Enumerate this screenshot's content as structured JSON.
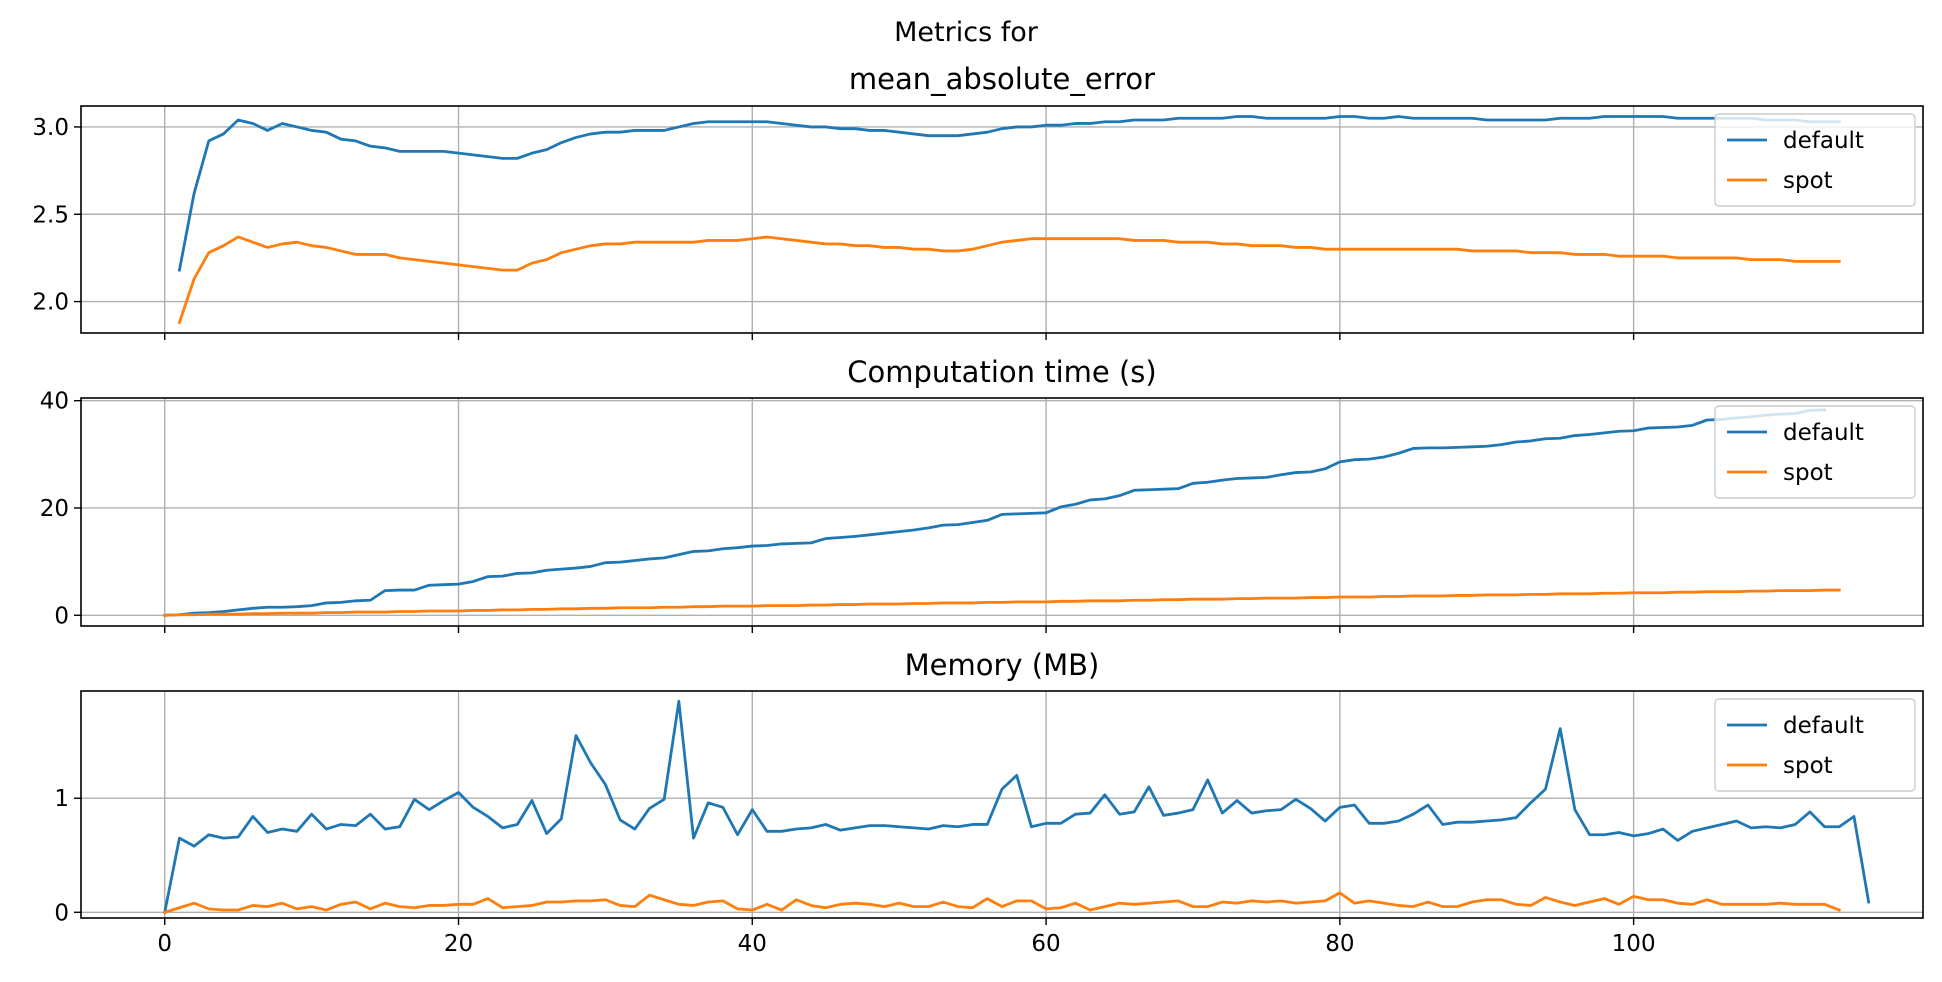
{
  "figure": {
    "suptitle": "Metrics for"
  },
  "colors": {
    "default": "#1f77b4",
    "spot": "#ff7f0e",
    "grid": "#b0b0b0",
    "axes": "#000000"
  },
  "chart_data": [
    {
      "type": "line",
      "title": "mean_absolute_error",
      "xlabel": "",
      "ylabel": "",
      "xlim": [
        -5.7,
        119.7
      ],
      "ylim": [
        1.82,
        3.12
      ],
      "xticks": [
        0,
        20,
        40,
        60,
        80,
        100
      ],
      "yticks": [
        2.0,
        2.5,
        3.0
      ],
      "ytick_labels": [
        "2.0",
        "2.5",
        "3.0"
      ],
      "show_xtick_labels": false,
      "grid": true,
      "legend_position": "upper right",
      "x_start": 1,
      "series": [
        {
          "name": "default",
          "color": "#1f77b4",
          "values": [
            2.18,
            2.62,
            2.92,
            2.96,
            3.04,
            3.02,
            2.98,
            3.02,
            3.0,
            2.98,
            2.97,
            2.93,
            2.92,
            2.89,
            2.88,
            2.86,
            2.86,
            2.86,
            2.86,
            2.85,
            2.84,
            2.83,
            2.82,
            2.82,
            2.85,
            2.87,
            2.91,
            2.94,
            2.96,
            2.97,
            2.97,
            2.98,
            2.98,
            2.98,
            3.0,
            3.02,
            3.03,
            3.03,
            3.03,
            3.03,
            3.03,
            3.02,
            3.01,
            3.0,
            3.0,
            2.99,
            2.99,
            2.98,
            2.98,
            2.97,
            2.96,
            2.95,
            2.95,
            2.95,
            2.96,
            2.97,
            2.99,
            3.0,
            3.0,
            3.01,
            3.01,
            3.02,
            3.02,
            3.03,
            3.03,
            3.04,
            3.04,
            3.04,
            3.05,
            3.05,
            3.05,
            3.05,
            3.06,
            3.06,
            3.05,
            3.05,
            3.05,
            3.05,
            3.05,
            3.06,
            3.06,
            3.05,
            3.05,
            3.06,
            3.05,
            3.05,
            3.05,
            3.05,
            3.05,
            3.04,
            3.04,
            3.04,
            3.04,
            3.04,
            3.05,
            3.05,
            3.05,
            3.06,
            3.06,
            3.06,
            3.06,
            3.06,
            3.05,
            3.05,
            3.05,
            3.05,
            3.05,
            3.05,
            3.04,
            3.04,
            3.04,
            3.03,
            3.03,
            3.03
          ]
        },
        {
          "name": "spot",
          "color": "#ff7f0e",
          "values": [
            1.88,
            2.13,
            2.28,
            2.32,
            2.37,
            2.34,
            2.31,
            2.33,
            2.34,
            2.32,
            2.31,
            2.29,
            2.27,
            2.27,
            2.27,
            2.25,
            2.24,
            2.23,
            2.22,
            2.21,
            2.2,
            2.19,
            2.18,
            2.18,
            2.22,
            2.24,
            2.28,
            2.3,
            2.32,
            2.33,
            2.33,
            2.34,
            2.34,
            2.34,
            2.34,
            2.34,
            2.35,
            2.35,
            2.35,
            2.36,
            2.37,
            2.36,
            2.35,
            2.34,
            2.33,
            2.33,
            2.32,
            2.32,
            2.31,
            2.31,
            2.3,
            2.3,
            2.29,
            2.29,
            2.3,
            2.32,
            2.34,
            2.35,
            2.36,
            2.36,
            2.36,
            2.36,
            2.36,
            2.36,
            2.36,
            2.35,
            2.35,
            2.35,
            2.34,
            2.34,
            2.34,
            2.33,
            2.33,
            2.32,
            2.32,
            2.32,
            2.31,
            2.31,
            2.3,
            2.3,
            2.3,
            2.3,
            2.3,
            2.3,
            2.3,
            2.3,
            2.3,
            2.3,
            2.29,
            2.29,
            2.29,
            2.29,
            2.28,
            2.28,
            2.28,
            2.27,
            2.27,
            2.27,
            2.26,
            2.26,
            2.26,
            2.26,
            2.25,
            2.25,
            2.25,
            2.25,
            2.25,
            2.24,
            2.24,
            2.24,
            2.23,
            2.23,
            2.23,
            2.23
          ]
        }
      ]
    },
    {
      "type": "line",
      "title": "Computation time (s)",
      "xlabel": "",
      "ylabel": "",
      "xlim": [
        -5.7,
        119.7
      ],
      "ylim": [
        -2.0,
        40.5
      ],
      "xticks": [
        0,
        20,
        40,
        60,
        80,
        100
      ],
      "yticks": [
        0,
        20,
        40
      ],
      "ytick_labels": [
        "0",
        "20",
        "40"
      ],
      "show_xtick_labels": false,
      "grid": true,
      "legend_position": "upper right",
      "x_start": 0,
      "series": [
        {
          "name": "default",
          "color": "#1f77b4",
          "values": [
            0.0,
            0.1,
            0.4,
            0.5,
            0.7,
            1.0,
            1.3,
            1.5,
            1.5,
            1.6,
            1.8,
            2.3,
            2.4,
            2.7,
            2.8,
            4.6,
            4.7,
            4.7,
            5.6,
            5.7,
            5.8,
            6.3,
            7.2,
            7.3,
            7.8,
            7.9,
            8.4,
            8.6,
            8.8,
            9.1,
            9.8,
            9.9,
            10.2,
            10.5,
            10.7,
            11.3,
            11.9,
            12.0,
            12.4,
            12.6,
            12.9,
            13.0,
            13.3,
            13.4,
            13.5,
            14.3,
            14.5,
            14.7,
            15.0,
            15.3,
            15.6,
            15.9,
            16.3,
            16.8,
            16.9,
            17.3,
            17.7,
            18.8,
            18.9,
            19.0,
            19.1,
            20.2,
            20.7,
            21.5,
            21.7,
            22.3,
            23.3,
            23.4,
            23.5,
            23.6,
            24.6,
            24.8,
            25.2,
            25.5,
            25.6,
            25.7,
            26.2,
            26.6,
            26.7,
            27.3,
            28.6,
            29.0,
            29.1,
            29.5,
            30.2,
            31.1,
            31.2,
            31.2,
            31.3,
            31.4,
            31.5,
            31.8,
            32.3,
            32.5,
            32.9,
            33.0,
            33.5,
            33.7,
            34.0,
            34.3,
            34.4,
            34.9,
            35.0,
            35.1,
            35.4,
            36.4,
            36.5,
            36.8,
            37.0,
            37.3,
            37.5,
            37.6,
            38.2,
            38.3
          ]
        },
        {
          "name": "spot",
          "color": "#ff7f0e",
          "values": [
            0.0,
            0.1,
            0.1,
            0.2,
            0.2,
            0.2,
            0.3,
            0.3,
            0.4,
            0.4,
            0.4,
            0.5,
            0.5,
            0.6,
            0.6,
            0.6,
            0.7,
            0.7,
            0.8,
            0.8,
            0.8,
            0.9,
            0.9,
            1.0,
            1.0,
            1.1,
            1.1,
            1.2,
            1.2,
            1.3,
            1.3,
            1.4,
            1.4,
            1.4,
            1.5,
            1.5,
            1.6,
            1.6,
            1.7,
            1.7,
            1.7,
            1.8,
            1.8,
            1.8,
            1.9,
            1.9,
            2.0,
            2.0,
            2.1,
            2.1,
            2.1,
            2.2,
            2.2,
            2.3,
            2.3,
            2.3,
            2.4,
            2.4,
            2.5,
            2.5,
            2.5,
            2.6,
            2.6,
            2.7,
            2.7,
            2.7,
            2.8,
            2.8,
            2.9,
            2.9,
            3.0,
            3.0,
            3.0,
            3.1,
            3.1,
            3.2,
            3.2,
            3.2,
            3.3,
            3.3,
            3.4,
            3.4,
            3.4,
            3.5,
            3.5,
            3.6,
            3.6,
            3.6,
            3.7,
            3.7,
            3.8,
            3.8,
            3.8,
            3.9,
            3.9,
            4.0,
            4.0,
            4.0,
            4.1,
            4.1,
            4.2,
            4.2,
            4.2,
            4.3,
            4.3,
            4.4,
            4.4,
            4.4,
            4.5,
            4.5,
            4.6,
            4.6,
            4.6,
            4.7,
            4.7
          ]
        }
      ]
    },
    {
      "type": "line",
      "title": "Memory (MB)",
      "xlabel": "",
      "ylabel": "",
      "xlim": [
        -5.7,
        119.7
      ],
      "ylim": [
        -0.05,
        1.94
      ],
      "xticks": [
        0,
        20,
        40,
        60,
        80,
        100
      ],
      "yticks": [
        0,
        1
      ],
      "ytick_labels": [
        "0",
        "1"
      ],
      "show_xtick_labels": true,
      "grid": true,
      "legend_position": "upper right",
      "x_start": 0,
      "series": [
        {
          "name": "default",
          "color": "#1f77b4",
          "values": [
            0.0,
            0.65,
            0.58,
            0.68,
            0.65,
            0.66,
            0.84,
            0.7,
            0.73,
            0.71,
            0.86,
            0.73,
            0.77,
            0.76,
            0.86,
            0.73,
            0.75,
            0.99,
            0.9,
            0.98,
            1.05,
            0.92,
            0.84,
            0.74,
            0.77,
            0.98,
            0.69,
            0.82,
            1.55,
            1.31,
            1.12,
            0.81,
            0.73,
            0.91,
            0.99,
            1.85,
            0.65,
            0.96,
            0.92,
            0.68,
            0.9,
            0.71,
            0.71,
            0.73,
            0.74,
            0.77,
            0.72,
            0.74,
            0.76,
            0.76,
            0.75,
            0.74,
            0.73,
            0.76,
            0.75,
            0.77,
            0.77,
            1.08,
            1.2,
            0.75,
            0.78,
            0.78,
            0.86,
            0.87,
            1.03,
            0.86,
            0.88,
            1.1,
            0.85,
            0.87,
            0.9,
            1.16,
            0.87,
            0.98,
            0.87,
            0.89,
            0.9,
            0.99,
            0.91,
            0.8,
            0.92,
            0.94,
            0.78,
            0.78,
            0.8,
            0.86,
            0.94,
            0.77,
            0.79,
            0.79,
            0.8,
            0.81,
            0.83,
            0.96,
            1.08,
            1.61,
            0.9,
            0.68,
            0.68,
            0.7,
            0.67,
            0.69,
            0.73,
            0.63,
            0.71,
            0.74,
            0.77,
            0.8,
            0.74,
            0.75,
            0.74,
            0.77,
            0.88,
            0.75,
            0.75,
            0.84,
            0.09
          ]
        },
        {
          "name": "spot",
          "color": "#ff7f0e",
          "values": [
            0.0,
            0.04,
            0.08,
            0.03,
            0.02,
            0.02,
            0.06,
            0.05,
            0.08,
            0.03,
            0.05,
            0.02,
            0.07,
            0.09,
            0.03,
            0.08,
            0.05,
            0.04,
            0.06,
            0.06,
            0.07,
            0.07,
            0.12,
            0.04,
            0.05,
            0.06,
            0.09,
            0.09,
            0.1,
            0.1,
            0.11,
            0.06,
            0.05,
            0.15,
            0.11,
            0.07,
            0.06,
            0.09,
            0.1,
            0.03,
            0.02,
            0.07,
            0.02,
            0.11,
            0.06,
            0.04,
            0.07,
            0.08,
            0.07,
            0.05,
            0.08,
            0.05,
            0.05,
            0.09,
            0.05,
            0.04,
            0.12,
            0.05,
            0.1,
            0.1,
            0.03,
            0.04,
            0.08,
            0.02,
            0.05,
            0.08,
            0.07,
            0.08,
            0.09,
            0.1,
            0.05,
            0.05,
            0.09,
            0.08,
            0.1,
            0.09,
            0.1,
            0.08,
            0.09,
            0.1,
            0.17,
            0.08,
            0.1,
            0.08,
            0.06,
            0.05,
            0.09,
            0.05,
            0.05,
            0.09,
            0.11,
            0.11,
            0.07,
            0.06,
            0.13,
            0.09,
            0.06,
            0.09,
            0.12,
            0.07,
            0.14,
            0.11,
            0.11,
            0.08,
            0.07,
            0.11,
            0.07,
            0.07,
            0.07,
            0.07,
            0.08,
            0.07,
            0.07,
            0.07,
            0.02
          ]
        }
      ]
    }
  ]
}
